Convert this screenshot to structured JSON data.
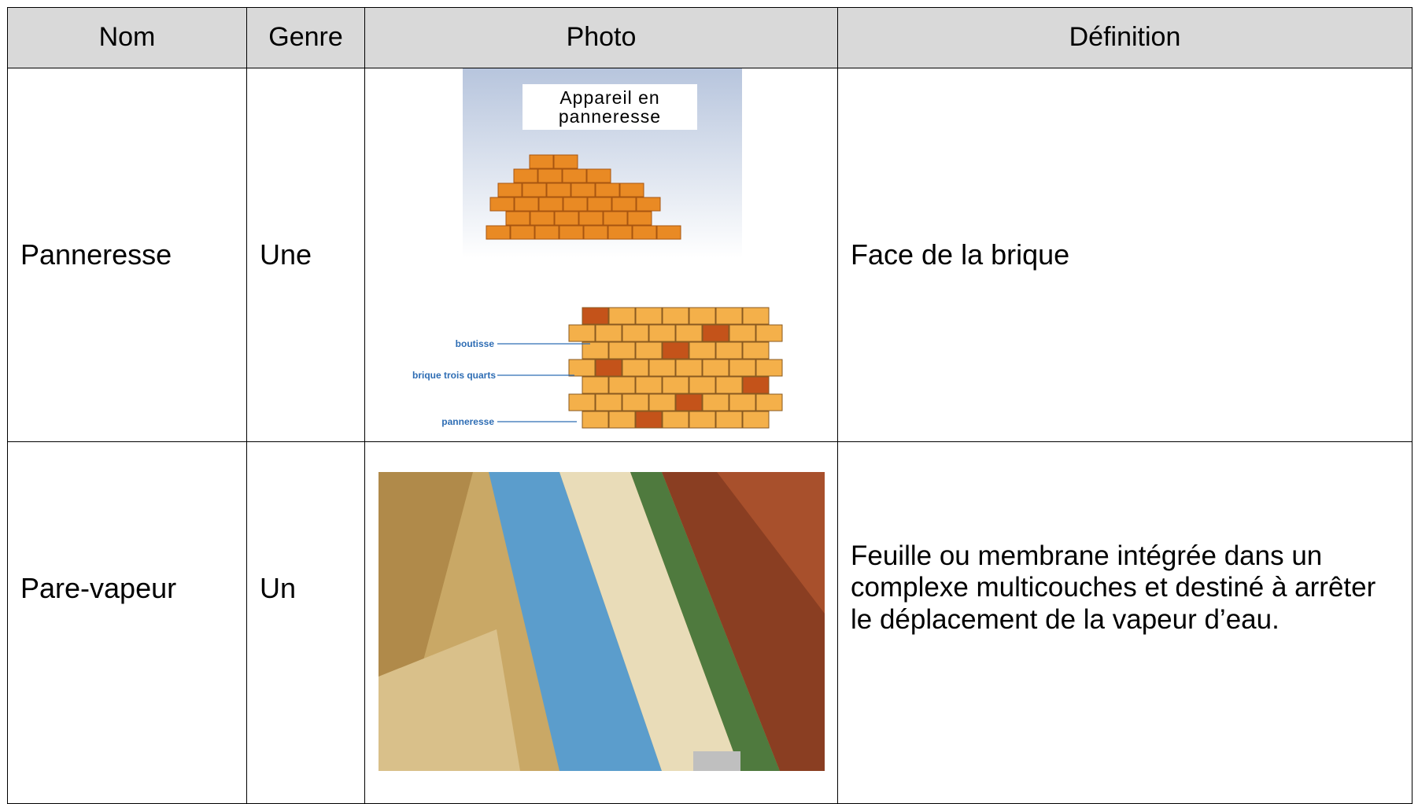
{
  "table": {
    "header": [
      "Nom",
      "Genre",
      "Photo",
      "Définition"
    ],
    "rows": [
      {
        "nom": "Panneresse",
        "genre": "Une",
        "definition": "Face de la brique",
        "photo": {
          "caption": "Appareil en panneresse",
          "labels": [
            "boutisse",
            "brique trois quarts",
            "panneresse"
          ]
        }
      },
      {
        "nom": "Pare-vapeur",
        "genre": "Un",
        "definition": "Feuille ou membrane intégrée dans un complexe multicouches et destiné à arrêter le déplacement de la vapeur d’eau."
      }
    ]
  }
}
